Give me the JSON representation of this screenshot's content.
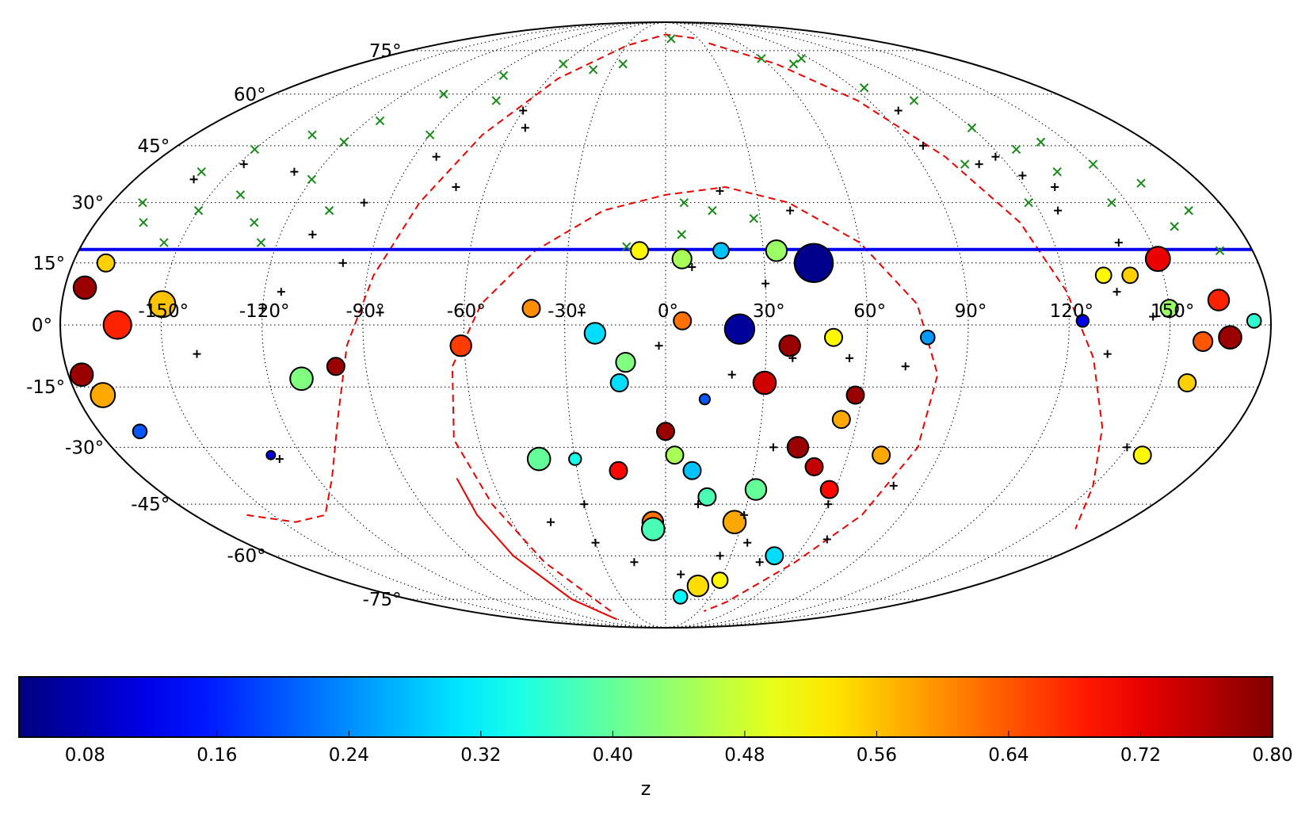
{
  "chart_data": {
    "type": "scatter",
    "projection": "mollweide",
    "title": "",
    "longitude_ticks": [
      "-150°",
      "-120°",
      "-90°",
      "-60°",
      "-30°",
      "0°",
      "30°",
      "60°",
      "90°",
      "120°",
      "150°"
    ],
    "longitude_tick_values": [
      -150,
      -120,
      -90,
      -60,
      -30,
      0,
      30,
      60,
      90,
      120,
      150
    ],
    "latitude_ticks": [
      "75°",
      "60°",
      "45°",
      "30°",
      "15°",
      "0°",
      "-15°",
      "-30°",
      "-45°",
      "-60°",
      "-75°"
    ],
    "latitude_tick_values": [
      75,
      60,
      45,
      30,
      15,
      0,
      -15,
      -30,
      -45,
      -60,
      -75
    ],
    "grid": true,
    "colorbar": {
      "label": "z",
      "range": [
        0.04,
        0.8
      ],
      "colormap": "jet",
      "ticks": [
        "0.08",
        "0.16",
        "0.24",
        "0.32",
        "0.40",
        "0.48",
        "0.56",
        "0.64",
        "0.72",
        "0.80"
      ],
      "tick_values": [
        0.08,
        0.16,
        0.24,
        0.32,
        0.4,
        0.48,
        0.56,
        0.64,
        0.72,
        0.8
      ],
      "orientation": "horizontal",
      "placement": "bottom"
    },
    "horizon_line": {
      "lat": 18.3,
      "color": "#0000ee"
    },
    "galactic_plane_curves": {
      "color": "#ee0000",
      "style": "dashed"
    },
    "series": [
      {
        "name": "clusters",
        "marker": "circle",
        "note": "marker size scales with cluster size",
        "points": [
          {
            "lon": 45,
            "lat": 15,
            "z": 0.05,
            "s": 2.2
          },
          {
            "lon": 22,
            "lat": -1,
            "z": 0.06,
            "s": 1.7
          },
          {
            "lon": -8,
            "lat": 18,
            "z": 0.52,
            "s": 1.0
          },
          {
            "lon": 5,
            "lat": 16,
            "z": 0.45,
            "s": 1.1
          },
          {
            "lon": 17,
            "lat": 18,
            "z": 0.28,
            "s": 0.9
          },
          {
            "lon": 34,
            "lat": 18,
            "z": 0.44,
            "s": 1.2
          },
          {
            "lon": 5,
            "lat": 1,
            "z": 0.62,
            "s": 1.0
          },
          {
            "lon": -40,
            "lat": 4,
            "z": 0.6,
            "s": 1.0
          },
          {
            "lon": -21,
            "lat": -2,
            "z": 0.3,
            "s": 1.2
          },
          {
            "lon": -12,
            "lat": -9,
            "z": 0.42,
            "s": 1.1
          },
          {
            "lon": -14,
            "lat": -14,
            "z": 0.3,
            "s": 1.0
          },
          {
            "lon": 30,
            "lat": -14,
            "z": 0.74,
            "s": 1.3
          },
          {
            "lon": 37,
            "lat": -5,
            "z": 0.78,
            "s": 1.2
          },
          {
            "lon": 50,
            "lat": -3,
            "z": 0.52,
            "s": 1.0
          },
          {
            "lon": 58,
            "lat": -17,
            "z": 0.78,
            "s": 1.0
          },
          {
            "lon": 43,
            "lat": -30,
            "z": 0.78,
            "s": 1.2
          },
          {
            "lon": 55,
            "lat": -23,
            "z": 0.58,
            "s": 1.0
          },
          {
            "lon": 50,
            "lat": -35,
            "z": 0.75,
            "s": 1.0
          },
          {
            "lon": 58,
            "lat": -41,
            "z": 0.7,
            "s": 1.0
          },
          {
            "lon": 71,
            "lat": -32,
            "z": 0.58,
            "s": 1.0
          },
          {
            "lon": 78,
            "lat": -3,
            "z": 0.25,
            "s": 0.8
          },
          {
            "lon": 0,
            "lat": -26,
            "z": 0.78,
            "s": 1.0
          },
          {
            "lon": 3,
            "lat": -32,
            "z": 0.45,
            "s": 1.0
          },
          {
            "lon": 9,
            "lat": -36,
            "z": 0.28,
            "s": 1.0
          },
          {
            "lon": 15,
            "lat": -43,
            "z": 0.38,
            "s": 1.0
          },
          {
            "lon": 32,
            "lat": -41,
            "z": 0.4,
            "s": 1.2
          },
          {
            "lon": 27,
            "lat": -50,
            "z": 0.58,
            "s": 1.3
          },
          {
            "lon": -5,
            "lat": -50,
            "z": 0.62,
            "s": 1.2
          },
          {
            "lon": -5,
            "lat": -52,
            "z": 0.38,
            "s": 1.3
          },
          {
            "lon": -16,
            "lat": -36,
            "z": 0.7,
            "s": 1.0
          },
          {
            "lon": -42,
            "lat": -33,
            "z": 0.4,
            "s": 1.3
          },
          {
            "lon": -61,
            "lat": -5,
            "z": 0.66,
            "s": 1.2
          },
          {
            "lon": 12,
            "lat": -18,
            "z": 0.2,
            "s": 0.6
          },
          {
            "lon": -99,
            "lat": -10,
            "z": 0.78,
            "s": 1.0
          },
          {
            "lon": -110,
            "lat": -13,
            "z": 0.42,
            "s": 1.3
          },
          {
            "lon": -163,
            "lat": 0,
            "z": 0.68,
            "s": 1.6
          },
          {
            "lon": -150,
            "lat": 5,
            "z": 0.56,
            "s": 1.5
          },
          {
            "lon": -174,
            "lat": 9,
            "z": 0.78,
            "s": 1.3
          },
          {
            "lon": -176,
            "lat": -12,
            "z": 0.78,
            "s": 1.3
          },
          {
            "lon": -172,
            "lat": -17,
            "z": 0.58,
            "s": 1.4
          },
          {
            "lon": -170,
            "lat": 15,
            "z": 0.55,
            "s": 1.0
          },
          {
            "lon": 150,
            "lat": 16,
            "z": 0.72,
            "s": 1.4
          },
          {
            "lon": 150,
            "lat": 4,
            "z": 0.44,
            "s": 1.0
          },
          {
            "lon": 168,
            "lat": -3,
            "z": 0.78,
            "s": 1.3
          },
          {
            "lon": 165,
            "lat": 6,
            "z": 0.68,
            "s": 1.2
          },
          {
            "lon": 160,
            "lat": -4,
            "z": 0.64,
            "s": 1.1
          },
          {
            "lon": 158,
            "lat": -14,
            "z": 0.55,
            "s": 1.0
          },
          {
            "lon": 175,
            "lat": 1,
            "z": 0.36,
            "s": 0.8
          },
          {
            "lon": 157,
            "lat": -32,
            "z": 0.52,
            "s": 1.0
          },
          {
            "lon": 124,
            "lat": 1,
            "z": 0.12,
            "s": 0.7
          },
          {
            "lon": 132,
            "lat": 12,
            "z": 0.52,
            "s": 0.9
          },
          {
            "lon": 140,
            "lat": 12,
            "z": 0.55,
            "s": 0.9
          },
          {
            "lon": -130,
            "lat": -32,
            "z": 0.12,
            "s": 0.5
          },
          {
            "lon": -167,
            "lat": -26,
            "z": 0.2,
            "s": 0.8
          },
          {
            "lon": 50,
            "lat": -60,
            "z": 0.3,
            "s": 1.0
          },
          {
            "lon": 19,
            "lat": -70,
            "z": 0.54,
            "s": 1.2
          },
          {
            "lon": 30,
            "lat": -68,
            "z": 0.52,
            "s": 0.9
          },
          {
            "lon": 10,
            "lat": -74,
            "z": 0.32,
            "s": 0.8
          },
          {
            "lon": -30,
            "lat": -33,
            "z": 0.34,
            "s": 0.7
          }
        ]
      },
      {
        "name": "black-plus",
        "marker": "+",
        "color": "#000000",
        "points": [
          {
            "lon": -60,
            "lat": 55
          },
          {
            "lon": -55,
            "lat": 50
          },
          {
            "lon": -82,
            "lat": 42
          },
          {
            "lon": -70,
            "lat": 34
          },
          {
            "lon": -98,
            "lat": 30
          },
          {
            "lon": -110,
            "lat": 22
          },
          {
            "lon": -98,
            "lat": 15
          },
          {
            "lon": 18,
            "lat": 33
          },
          {
            "lon": 40,
            "lat": 28
          },
          {
            "lon": 8,
            "lat": 14
          },
          {
            "lon": 30,
            "lat": 10
          },
          {
            "lon": -25,
            "lat": 3
          },
          {
            "lon": 20,
            "lat": -12
          },
          {
            "lon": 38,
            "lat": -8
          },
          {
            "lon": 55,
            "lat": -8
          },
          {
            "lon": 72,
            "lat": -10
          },
          {
            "lon": 35,
            "lat": -30
          },
          {
            "lon": 60,
            "lat": -45
          },
          {
            "lon": 30,
            "lat": -48
          },
          {
            "lon": -30,
            "lat": -45
          },
          {
            "lon": -45,
            "lat": -50
          },
          {
            "lon": -30,
            "lat": -56
          },
          {
            "lon": 45,
            "lat": -62
          },
          {
            "lon": 25,
            "lat": -60
          },
          {
            "lon": -15,
            "lat": -62
          },
          {
            "lon": 8,
            "lat": -66
          },
          {
            "lon": 35,
            "lat": -56
          },
          {
            "lon": 68,
            "lat": -55
          },
          {
            "lon": 80,
            "lat": -40
          },
          {
            "lon": -85,
            "lat": 3
          },
          {
            "lon": -115,
            "lat": 8
          },
          {
            "lon": -120,
            "lat": 4
          },
          {
            "lon": -140,
            "lat": -7
          },
          {
            "lon": -128,
            "lat": -33
          },
          {
            "lon": 145,
            "lat": 2
          },
          {
            "lon": 140,
            "lat": 20
          },
          {
            "lon": 150,
            "lat": -30
          },
          {
            "lon": 130,
            "lat": 34
          },
          {
            "lon": 122,
            "lat": 37
          },
          {
            "lon": 126,
            "lat": 28
          },
          {
            "lon": 98,
            "lat": 55
          },
          {
            "lon": 95,
            "lat": 45
          },
          {
            "lon": 110,
            "lat": 40
          },
          {
            "lon": 118,
            "lat": 42
          },
          {
            "lon": 132,
            "lat": -7
          },
          {
            "lon": -148,
            "lat": 40
          },
          {
            "lon": -128,
            "lat": 38
          },
          {
            "lon": -160,
            "lat": 36
          },
          {
            "lon": 135,
            "lat": 8
          },
          {
            "lon": -2,
            "lat": -5
          },
          {
            "lon": 12,
            "lat": -45
          }
        ]
      },
      {
        "name": "green-x",
        "marker": "x",
        "color": "#1a8a1a",
        "points": [
          {
            "lon": 5,
            "lat": 80
          },
          {
            "lon": -60,
            "lat": 70
          },
          {
            "lon": -85,
            "lat": 66
          },
          {
            "lon": -102,
            "lat": 60
          },
          {
            "lon": -115,
            "lat": 52
          },
          {
            "lon": -120,
            "lat": 46
          },
          {
            "lon": -135,
            "lat": 48
          },
          {
            "lon": -150,
            "lat": 44
          },
          {
            "lon": -160,
            "lat": 38
          },
          {
            "lon": -140,
            "lat": 32
          },
          {
            "lon": -170,
            "lat": 30
          },
          {
            "lon": -165,
            "lat": 25
          },
          {
            "lon": -150,
            "lat": 28
          },
          {
            "lon": -130,
            "lat": 25
          },
          {
            "lon": -120,
            "lat": 36
          },
          {
            "lon": -108,
            "lat": 28
          },
          {
            "lon": -90,
            "lat": 48
          },
          {
            "lon": -75,
            "lat": 58
          },
          {
            "lon": -40,
            "lat": 68
          },
          {
            "lon": -25,
            "lat": 70
          },
          {
            "lon": 60,
            "lat": 72
          },
          {
            "lon": 75,
            "lat": 70
          },
          {
            "lon": 95,
            "lat": 62
          },
          {
            "lon": 110,
            "lat": 58
          },
          {
            "lon": 120,
            "lat": 50
          },
          {
            "lon": 128,
            "lat": 44
          },
          {
            "lon": 140,
            "lat": 46
          },
          {
            "lon": 150,
            "lat": 40
          },
          {
            "lon": 160,
            "lat": 35
          },
          {
            "lon": 135,
            "lat": 38
          },
          {
            "lon": 118,
            "lat": 30
          },
          {
            "lon": 145,
            "lat": 30
          },
          {
            "lon": 168,
            "lat": 28
          },
          {
            "lon": 160,
            "lat": 24
          },
          {
            "lon": 105,
            "lat": 40
          },
          {
            "lon": 85,
            "lat": 72
          },
          {
            "lon": 6,
            "lat": 30
          },
          {
            "lon": 15,
            "lat": 28
          },
          {
            "lon": 28,
            "lat": 26
          },
          {
            "lon": 5,
            "lat": 22
          },
          {
            "lon": -12,
            "lat": 19
          },
          {
            "lon": -125,
            "lat": 20
          },
          {
            "lon": -155,
            "lat": 20
          },
          {
            "lon": 170,
            "lat": 18
          }
        ]
      }
    ]
  }
}
